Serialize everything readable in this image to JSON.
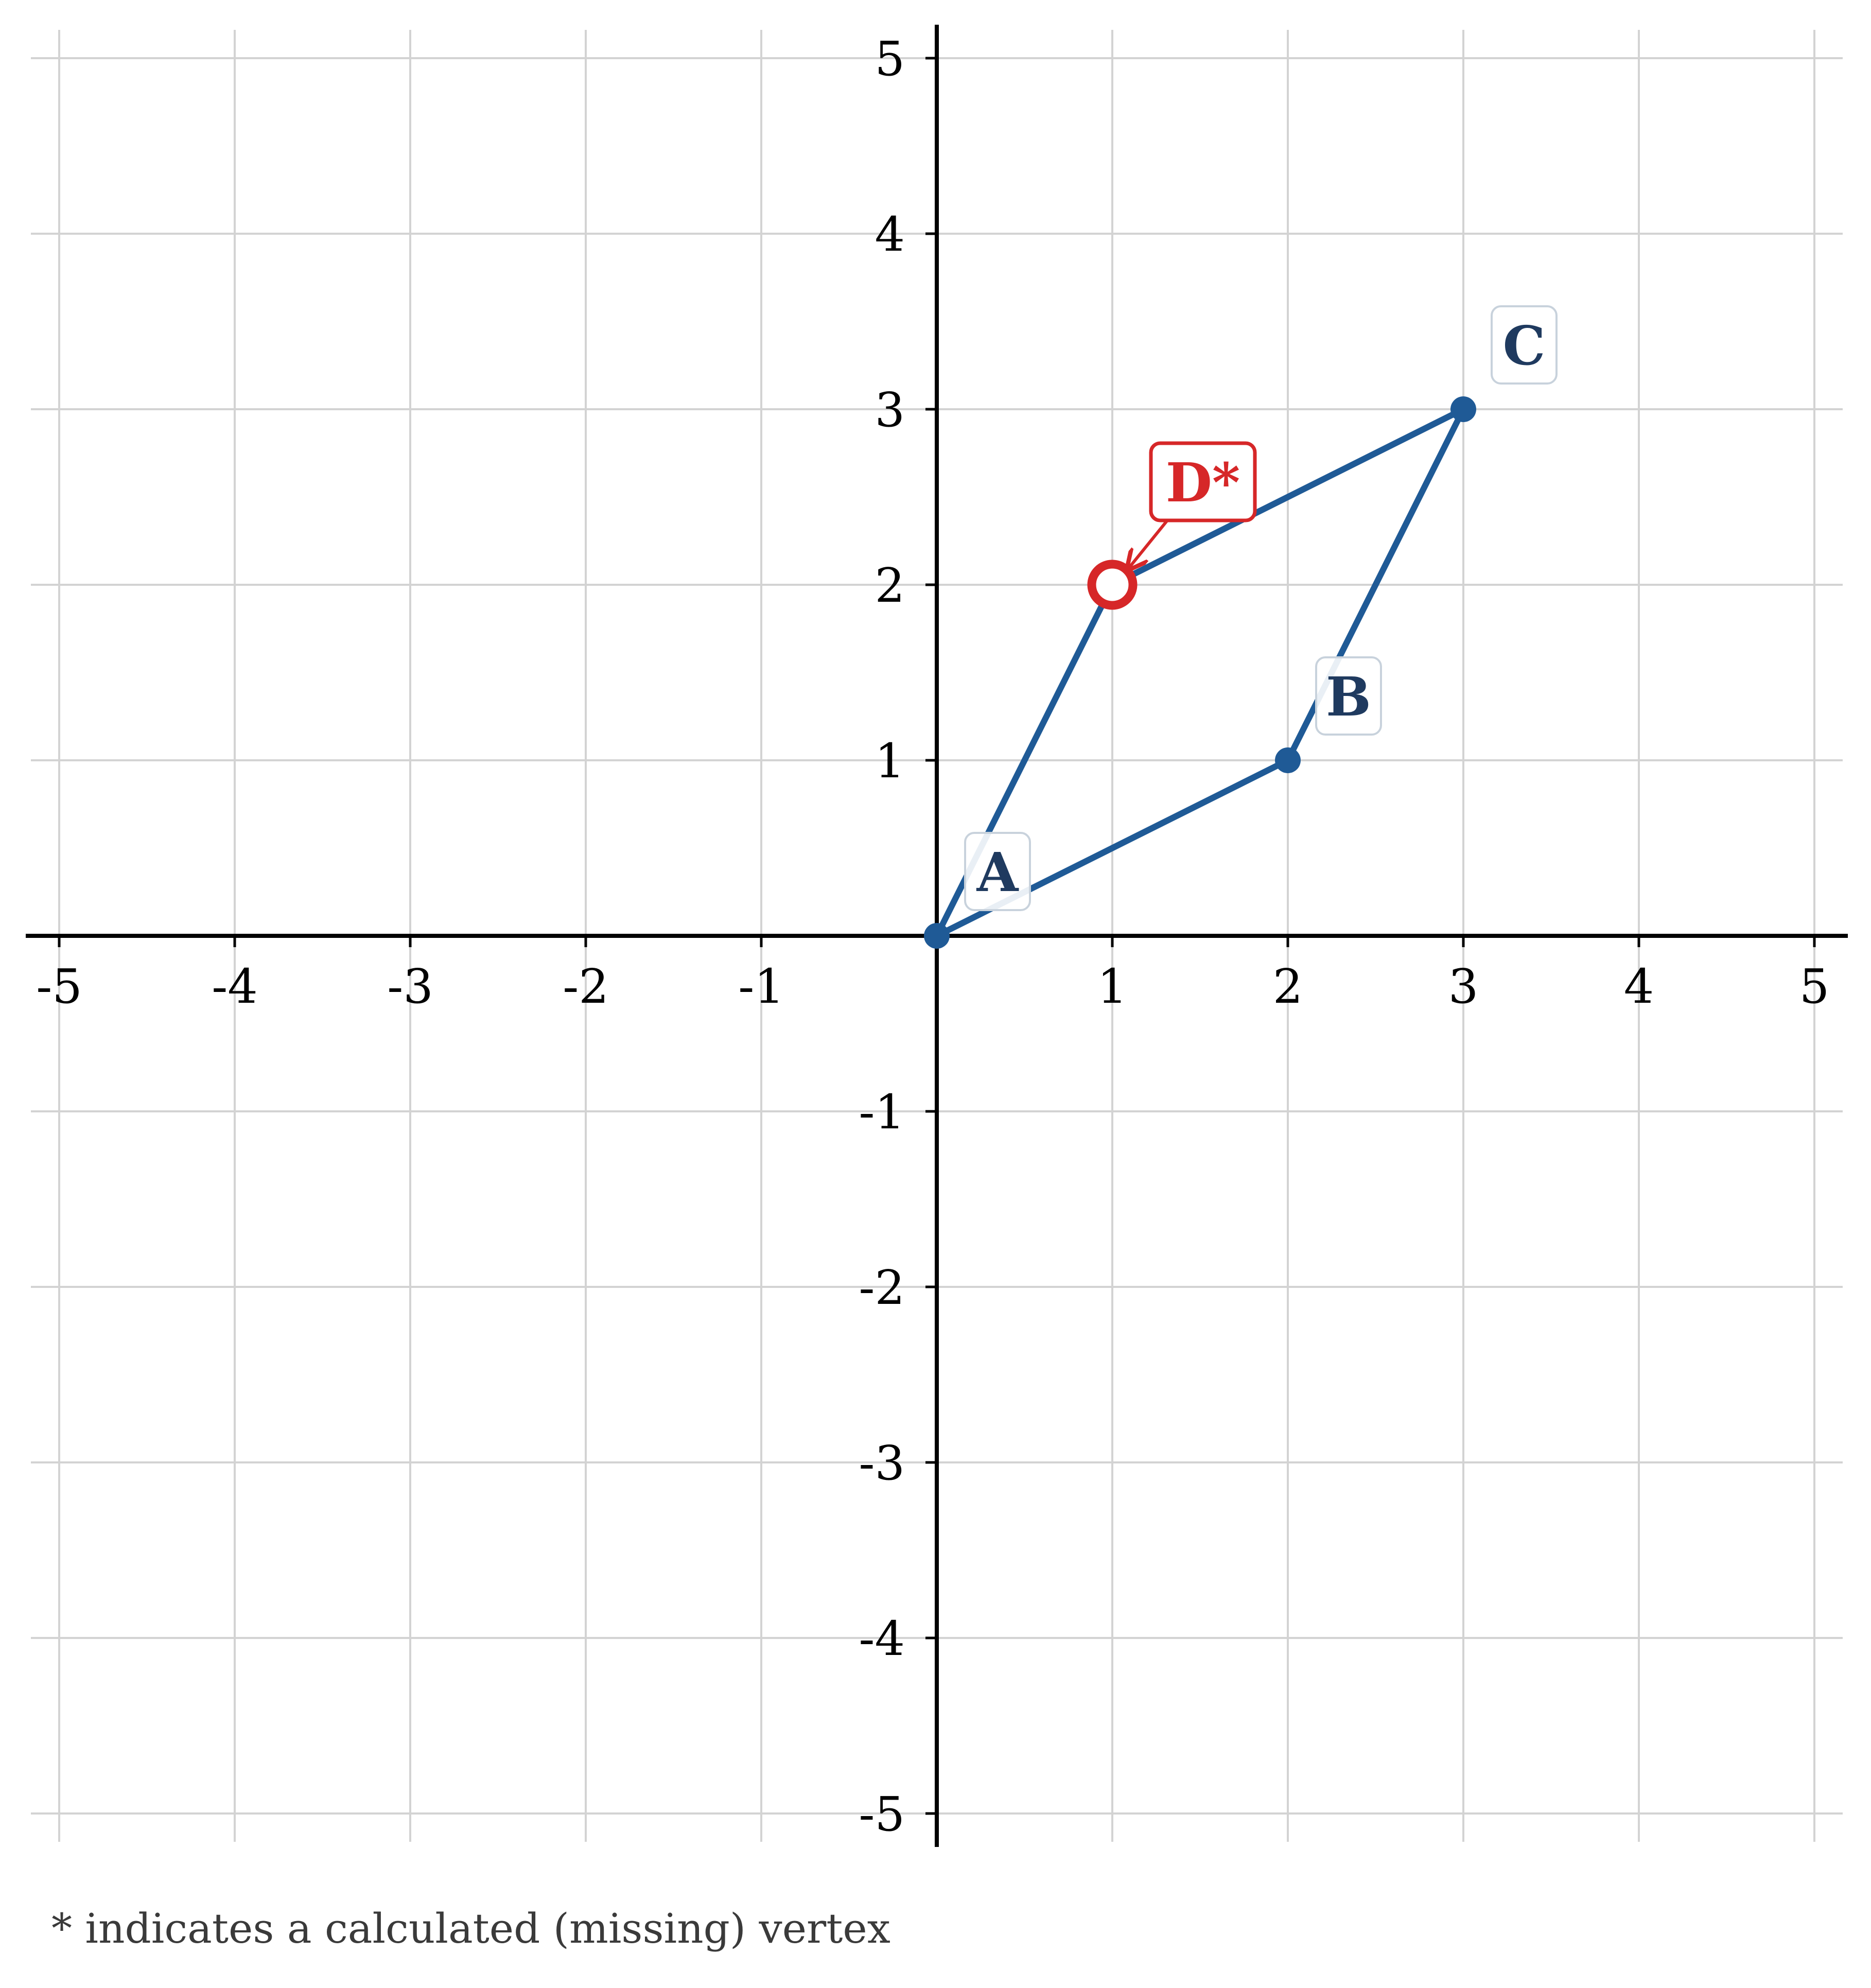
{
  "chart_data": {
    "type": "scatter",
    "xlim": [
      -5,
      5
    ],
    "ylim": [
      -5,
      5
    ],
    "x_ticks": [
      -5,
      -4,
      -3,
      -2,
      -1,
      1,
      2,
      3,
      4,
      5
    ],
    "y_ticks": [
      -5,
      -4,
      -3,
      -2,
      -1,
      1,
      2,
      3,
      4,
      5
    ],
    "grid": true,
    "polygon_order": [
      "A",
      "B",
      "C",
      "D*"
    ],
    "points": [
      {
        "label": "A",
        "x": 0,
        "y": 0,
        "calculated": false
      },
      {
        "label": "B",
        "x": 2,
        "y": 1,
        "calculated": false
      },
      {
        "label": "C",
        "x": 3,
        "y": 3,
        "calculated": false
      },
      {
        "label": "D*",
        "x": 1,
        "y": 2,
        "calculated": true
      }
    ],
    "colors": {
      "shape": "#1f5a96",
      "label_text": "#1f3a5f",
      "calculated": "#d62728",
      "grid": "#d3d3d3",
      "axis": "#000000"
    }
  },
  "footnote": "* indicates a calculated (missing) vertex"
}
